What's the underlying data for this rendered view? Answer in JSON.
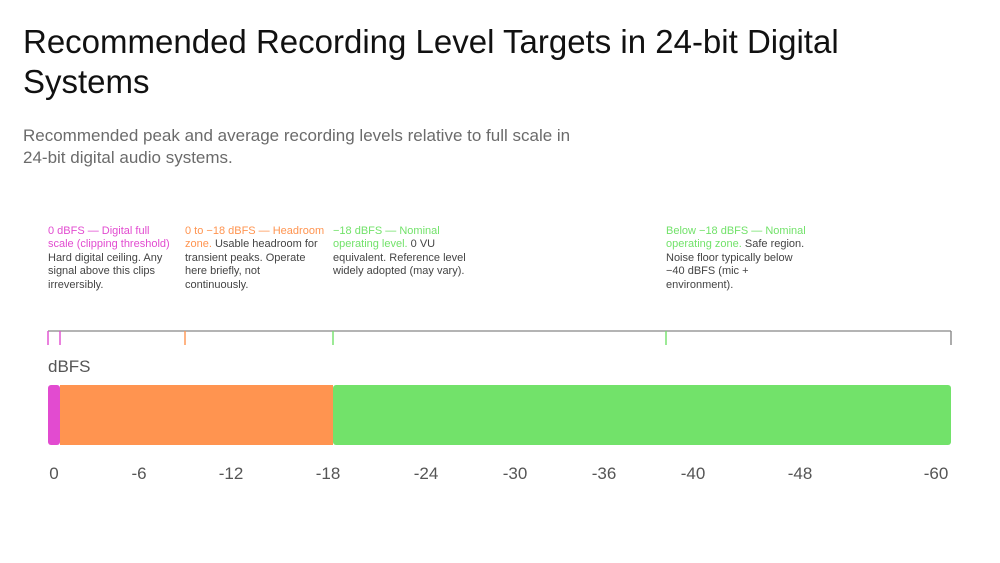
{
  "title": "Recommended Recording Level Targets in 24-bit Digital Systems",
  "subtitle": "Recommended peak and average recording levels relative to full scale in 24-bit digital audio systems.",
  "colors": {
    "clip": "#e24bd0",
    "headroom": "#ff9450",
    "nominal": "#72e26a",
    "axis": "#888888",
    "text_muted": "#555555"
  },
  "chart_data": {
    "type": "bar",
    "orientation": "horizontal-stacked-range",
    "ylabel": "dBFS",
    "xlim": [
      0,
      -60
    ],
    "ticks": [
      "0",
      "-6",
      "-12",
      "-18",
      "-24",
      "-30",
      "-36",
      "-40",
      "-48",
      "-60"
    ],
    "segments": [
      {
        "name": "Digital full scale (clipping threshold)",
        "from": 0,
        "to": -0.8,
        "color": "#e24bd0"
      },
      {
        "name": "Headroom zone",
        "from": -0.8,
        "to": -18,
        "color": "#ff9450"
      },
      {
        "name": "Nominal operating zone",
        "from": -18,
        "to": -60,
        "color": "#72e26a"
      }
    ],
    "markers": [
      {
        "value": 0,
        "color": "#e24bd0"
      },
      {
        "value": -0.8,
        "color": "#e24bd0"
      },
      {
        "value": -9,
        "color": "#ff9450"
      },
      {
        "value": -18,
        "color": "#72e26a"
      },
      {
        "value": -40,
        "color": "#72e26a"
      },
      {
        "value": -60,
        "color": "#888888"
      }
    ],
    "annotations": [
      {
        "head": "0 dBFS — Digital full scale (clipping threshold)",
        "body": "Hard digital ceiling. Any signal above this clips irreversibly.",
        "color": "#e24bd0"
      },
      {
        "head": "0 to −18 dBFS — Headroom zone.",
        "body": "Usable headroom for transient peaks. Operate here briefly, not continuously.",
        "color": "#ff9450"
      },
      {
        "head": "−18 dBFS — Nominal operating level.",
        "body": "0 VU equivalent. Reference level widely adopted (may vary).",
        "color": "#72e26a"
      },
      {
        "head": "Below −18 dBFS — Nominal operating zone.",
        "body": "Safe region. Noise floor typically below −40 dBFS (mic + environment).",
        "color": "#72e26a"
      }
    ]
  }
}
